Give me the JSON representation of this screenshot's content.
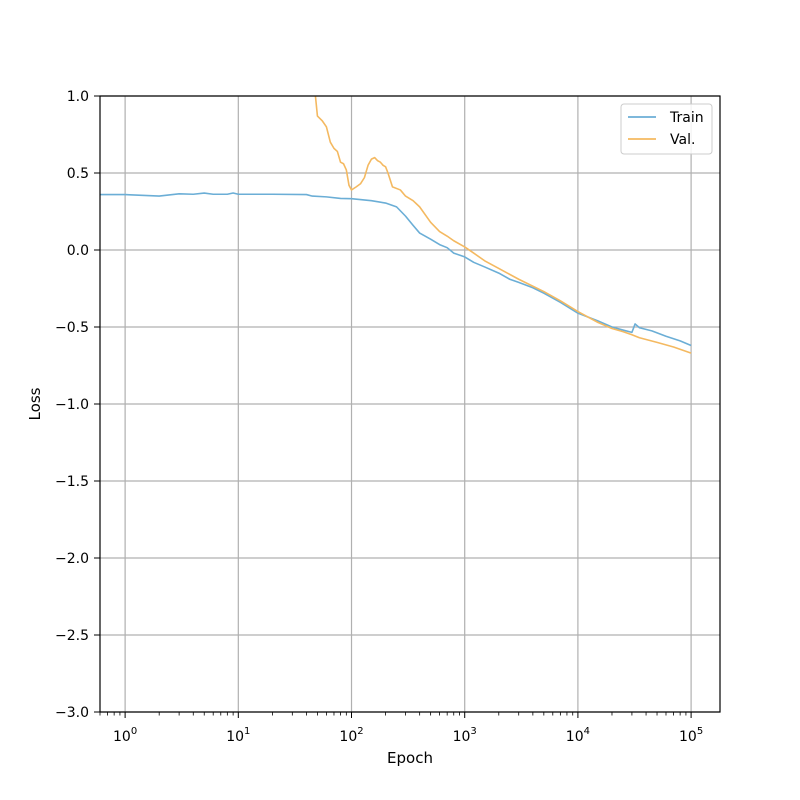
{
  "chart_data": {
    "type": "line",
    "title": "",
    "xlabel": "Epoch",
    "ylabel": "Loss",
    "x_scale": "log",
    "xlim": [
      0.6,
      180000
    ],
    "ylim": [
      -3.0,
      1.0
    ],
    "grid": true,
    "legend_position": "top-right",
    "x_tick_labels": [
      {
        "value": 1,
        "base": "10",
        "exp": "0"
      },
      {
        "value": 10,
        "base": "10",
        "exp": "1"
      },
      {
        "value": 100,
        "base": "10",
        "exp": "2"
      },
      {
        "value": 1000,
        "base": "10",
        "exp": "3"
      },
      {
        "value": 10000,
        "base": "10",
        "exp": "4"
      },
      {
        "value": 100000,
        "base": "10",
        "exp": "5"
      }
    ],
    "y_ticks": [
      1.0,
      0.5,
      0.0,
      -0.5,
      -1.0,
      -1.5,
      -2.0,
      -2.5,
      -3.0
    ],
    "y_tick_labels": [
      "1.0",
      "0.5",
      "0.0",
      "−0.5",
      "−1.0",
      "−1.5",
      "−2.0",
      "−2.5",
      "−3.0"
    ],
    "series": [
      {
        "name": "Train",
        "color": "#6baed6",
        "points": [
          [
            0.6,
            0.36
          ],
          [
            1,
            0.36
          ],
          [
            2,
            0.35
          ],
          [
            3,
            0.365
          ],
          [
            4,
            0.362
          ],
          [
            5,
            0.37
          ],
          [
            6,
            0.362
          ],
          [
            8,
            0.362
          ],
          [
            9,
            0.37
          ],
          [
            10,
            0.362
          ],
          [
            20,
            0.362
          ],
          [
            40,
            0.36
          ],
          [
            45,
            0.35
          ],
          [
            60,
            0.345
          ],
          [
            80,
            0.335
          ],
          [
            100,
            0.333
          ],
          [
            150,
            0.32
          ],
          [
            200,
            0.305
          ],
          [
            250,
            0.28
          ],
          [
            300,
            0.22
          ],
          [
            350,
            0.16
          ],
          [
            400,
            0.11
          ],
          [
            500,
            0.07
          ],
          [
            600,
            0.035
          ],
          [
            700,
            0.015
          ],
          [
            800,
            -0.02
          ],
          [
            1000,
            -0.045
          ],
          [
            1200,
            -0.08
          ],
          [
            1500,
            -0.11
          ],
          [
            2000,
            -0.15
          ],
          [
            2500,
            -0.19
          ],
          [
            3000,
            -0.21
          ],
          [
            4000,
            -0.245
          ],
          [
            5000,
            -0.28
          ],
          [
            7000,
            -0.34
          ],
          [
            10000,
            -0.41
          ],
          [
            15000,
            -0.46
          ],
          [
            20000,
            -0.5
          ],
          [
            25000,
            -0.52
          ],
          [
            30000,
            -0.535
          ],
          [
            32000,
            -0.48
          ],
          [
            35000,
            -0.505
          ],
          [
            45000,
            -0.525
          ],
          [
            60000,
            -0.56
          ],
          [
            80000,
            -0.59
          ],
          [
            100000,
            -0.62
          ]
        ]
      },
      {
        "name": "Val.",
        "color": "#f4b961",
        "points": [
          [
            48,
            1.0
          ],
          [
            50,
            0.87
          ],
          [
            55,
            0.84
          ],
          [
            60,
            0.8
          ],
          [
            65,
            0.7
          ],
          [
            70,
            0.66
          ],
          [
            75,
            0.64
          ],
          [
            80,
            0.57
          ],
          [
            85,
            0.56
          ],
          [
            90,
            0.52
          ],
          [
            95,
            0.42
          ],
          [
            100,
            0.39
          ],
          [
            110,
            0.41
          ],
          [
            120,
            0.43
          ],
          [
            130,
            0.47
          ],
          [
            140,
            0.55
          ],
          [
            150,
            0.59
          ],
          [
            160,
            0.6
          ],
          [
            170,
            0.58
          ],
          [
            180,
            0.57
          ],
          [
            190,
            0.55
          ],
          [
            200,
            0.54
          ],
          [
            210,
            0.5
          ],
          [
            230,
            0.41
          ],
          [
            270,
            0.39
          ],
          [
            300,
            0.35
          ],
          [
            350,
            0.32
          ],
          [
            400,
            0.28
          ],
          [
            500,
            0.18
          ],
          [
            600,
            0.12
          ],
          [
            700,
            0.09
          ],
          [
            800,
            0.06
          ],
          [
            1000,
            0.02
          ],
          [
            1200,
            -0.02
          ],
          [
            1500,
            -0.07
          ],
          [
            2000,
            -0.12
          ],
          [
            3000,
            -0.19
          ],
          [
            5000,
            -0.27
          ],
          [
            7000,
            -0.33
          ],
          [
            10000,
            -0.4
          ],
          [
            15000,
            -0.47
          ],
          [
            20000,
            -0.51
          ],
          [
            25000,
            -0.53
          ],
          [
            30000,
            -0.55
          ],
          [
            35000,
            -0.57
          ],
          [
            50000,
            -0.6
          ],
          [
            70000,
            -0.63
          ],
          [
            100000,
            -0.67
          ]
        ]
      }
    ]
  }
}
